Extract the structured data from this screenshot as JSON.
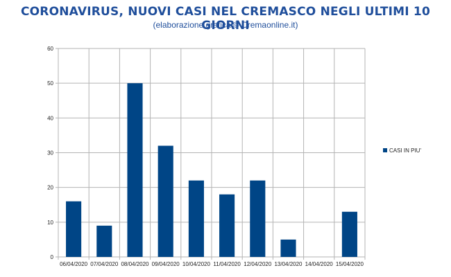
{
  "chart_data": {
    "type": "bar",
    "title": "CORONAVIRUS, NUOVI CASI NEL CREMASCO NEGLI ULTIMI 10 GIORNI",
    "subtitle": "(elaborazione grafica © Cremaonline.it)",
    "categories": [
      "06/04/2020",
      "07/04/2020",
      "08/04/2020",
      "09/04/2020",
      "10/04/2020",
      "11/04/2020",
      "12/04/2020",
      "13/04/2020",
      "14/04/2020",
      "15/04/2020"
    ],
    "series": [
      {
        "name": "CASI IN PIU'",
        "values": [
          16,
          9,
          50,
          32,
          22,
          18,
          22,
          5,
          0,
          13
        ],
        "color": "#004586"
      }
    ],
    "ylim": [
      0,
      60
    ],
    "yticks": [
      0,
      10,
      20,
      30,
      40,
      50,
      60
    ],
    "grid": true,
    "legend_position": "right"
  }
}
